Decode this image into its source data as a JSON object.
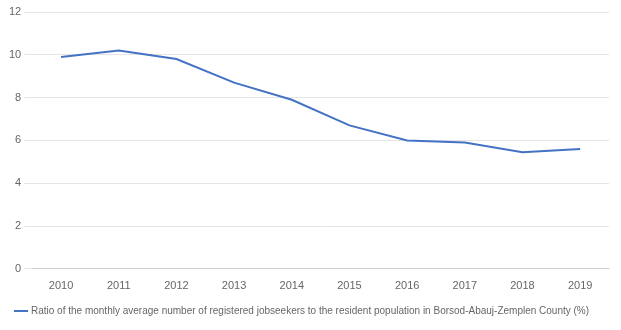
{
  "chart_data": {
    "type": "line",
    "x": [
      2010,
      2011,
      2012,
      2013,
      2014,
      2015,
      2016,
      2017,
      2018,
      2019
    ],
    "series": [
      {
        "name": "Ratio of the monthly average number of registered jobseekers to the resident population in Borsod-Abauj-Zemplen County (%)",
        "color": "#4472C4",
        "values": [
          9.9,
          10.2,
          9.8,
          8.7,
          7.9,
          6.7,
          6.0,
          5.9,
          5.45,
          5.6
        ]
      }
    ],
    "xlim": [
      2009.5,
      2019.5
    ],
    "xticks": [
      2010,
      2011,
      2012,
      2013,
      2014,
      2015,
      2016,
      2017,
      2018,
      2019
    ],
    "ylim": [
      0,
      12
    ],
    "yticks": [
      0,
      2,
      4,
      6,
      8,
      10,
      12
    ],
    "grid": true,
    "legend": "bottom"
  }
}
